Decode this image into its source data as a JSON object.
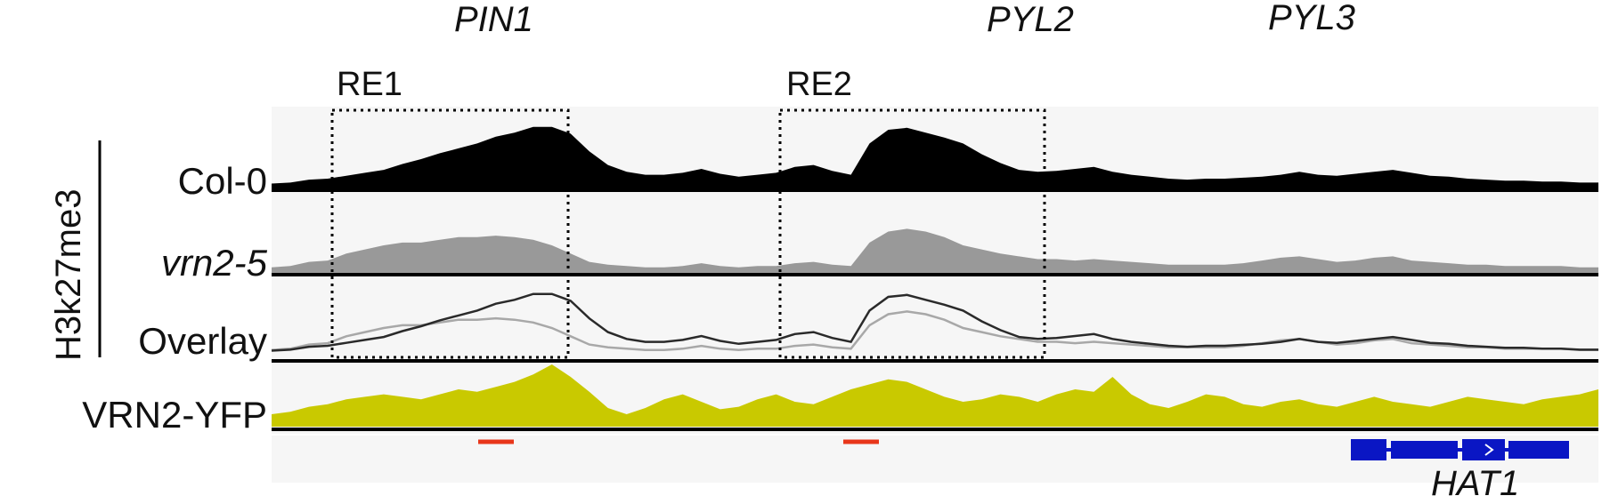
{
  "genes": {
    "pin1": "PIN1",
    "pyl2": "PYL2",
    "pyl3": "PYL3",
    "hat1": "HAT1"
  },
  "regions": {
    "re1": "RE1",
    "re2": "RE2"
  },
  "mark": "H3k27me3",
  "tracks": {
    "col0": "Col-0",
    "vrn2": "vrn2-5",
    "overlay": "Overlay",
    "vrn2yfp": "VRN2-YFP"
  },
  "colors": {
    "col0": "#000000",
    "vrn2": "#999999",
    "overlay_col0": "#2a2a2a",
    "overlay_vrn2": "#a8a8a8",
    "vrn2yfp": "#c9c900",
    "red_mark": "#e8361a",
    "gene_model": "#0a16c4",
    "track_bg": "#f6f6f6"
  },
  "signals": {
    "col0": [
      5,
      6,
      9,
      10,
      13,
      16,
      19,
      25,
      30,
      36,
      41,
      46,
      53,
      57,
      63,
      63,
      56,
      38,
      24,
      17,
      14,
      14,
      16,
      20,
      15,
      12,
      14,
      16,
      22,
      24,
      18,
      14,
      46,
      60,
      62,
      57,
      52,
      46,
      35,
      26,
      19,
      17,
      18,
      20,
      22,
      17,
      14,
      12,
      10,
      9,
      10,
      10,
      11,
      12,
      14,
      17,
      14,
      13,
      15,
      17,
      19,
      16,
      13,
      12,
      10,
      9,
      8,
      8,
      7,
      7,
      6,
      6
    ],
    "vrn2": [
      4,
      5,
      8,
      9,
      14,
      17,
      20,
      22,
      22,
      24,
      26,
      26,
      27,
      26,
      24,
      20,
      14,
      8,
      6,
      5,
      4,
      4,
      5,
      7,
      5,
      4,
      5,
      5,
      7,
      8,
      6,
      5,
      22,
      30,
      32,
      30,
      26,
      20,
      17,
      14,
      12,
      10,
      10,
      9,
      10,
      9,
      8,
      7,
      6,
      6,
      6,
      6,
      7,
      9,
      11,
      12,
      10,
      8,
      9,
      11,
      12,
      9,
      8,
      7,
      6,
      6,
      5,
      5,
      5,
      5,
      4,
      4
    ],
    "vrn2yfp": [
      10,
      12,
      16,
      18,
      22,
      24,
      26,
      24,
      22,
      26,
      30,
      28,
      32,
      36,
      42,
      50,
      40,
      28,
      15,
      10,
      15,
      22,
      26,
      20,
      14,
      16,
      22,
      26,
      20,
      18,
      24,
      30,
      34,
      38,
      36,
      30,
      24,
      20,
      22,
      26,
      24,
      20,
      26,
      30,
      28,
      40,
      26,
      18,
      15,
      20,
      26,
      24,
      18,
      16,
      20,
      22,
      18,
      16,
      20,
      24,
      20,
      18,
      16,
      20,
      24,
      22,
      20,
      18,
      22,
      24,
      26,
      30
    ]
  }
}
